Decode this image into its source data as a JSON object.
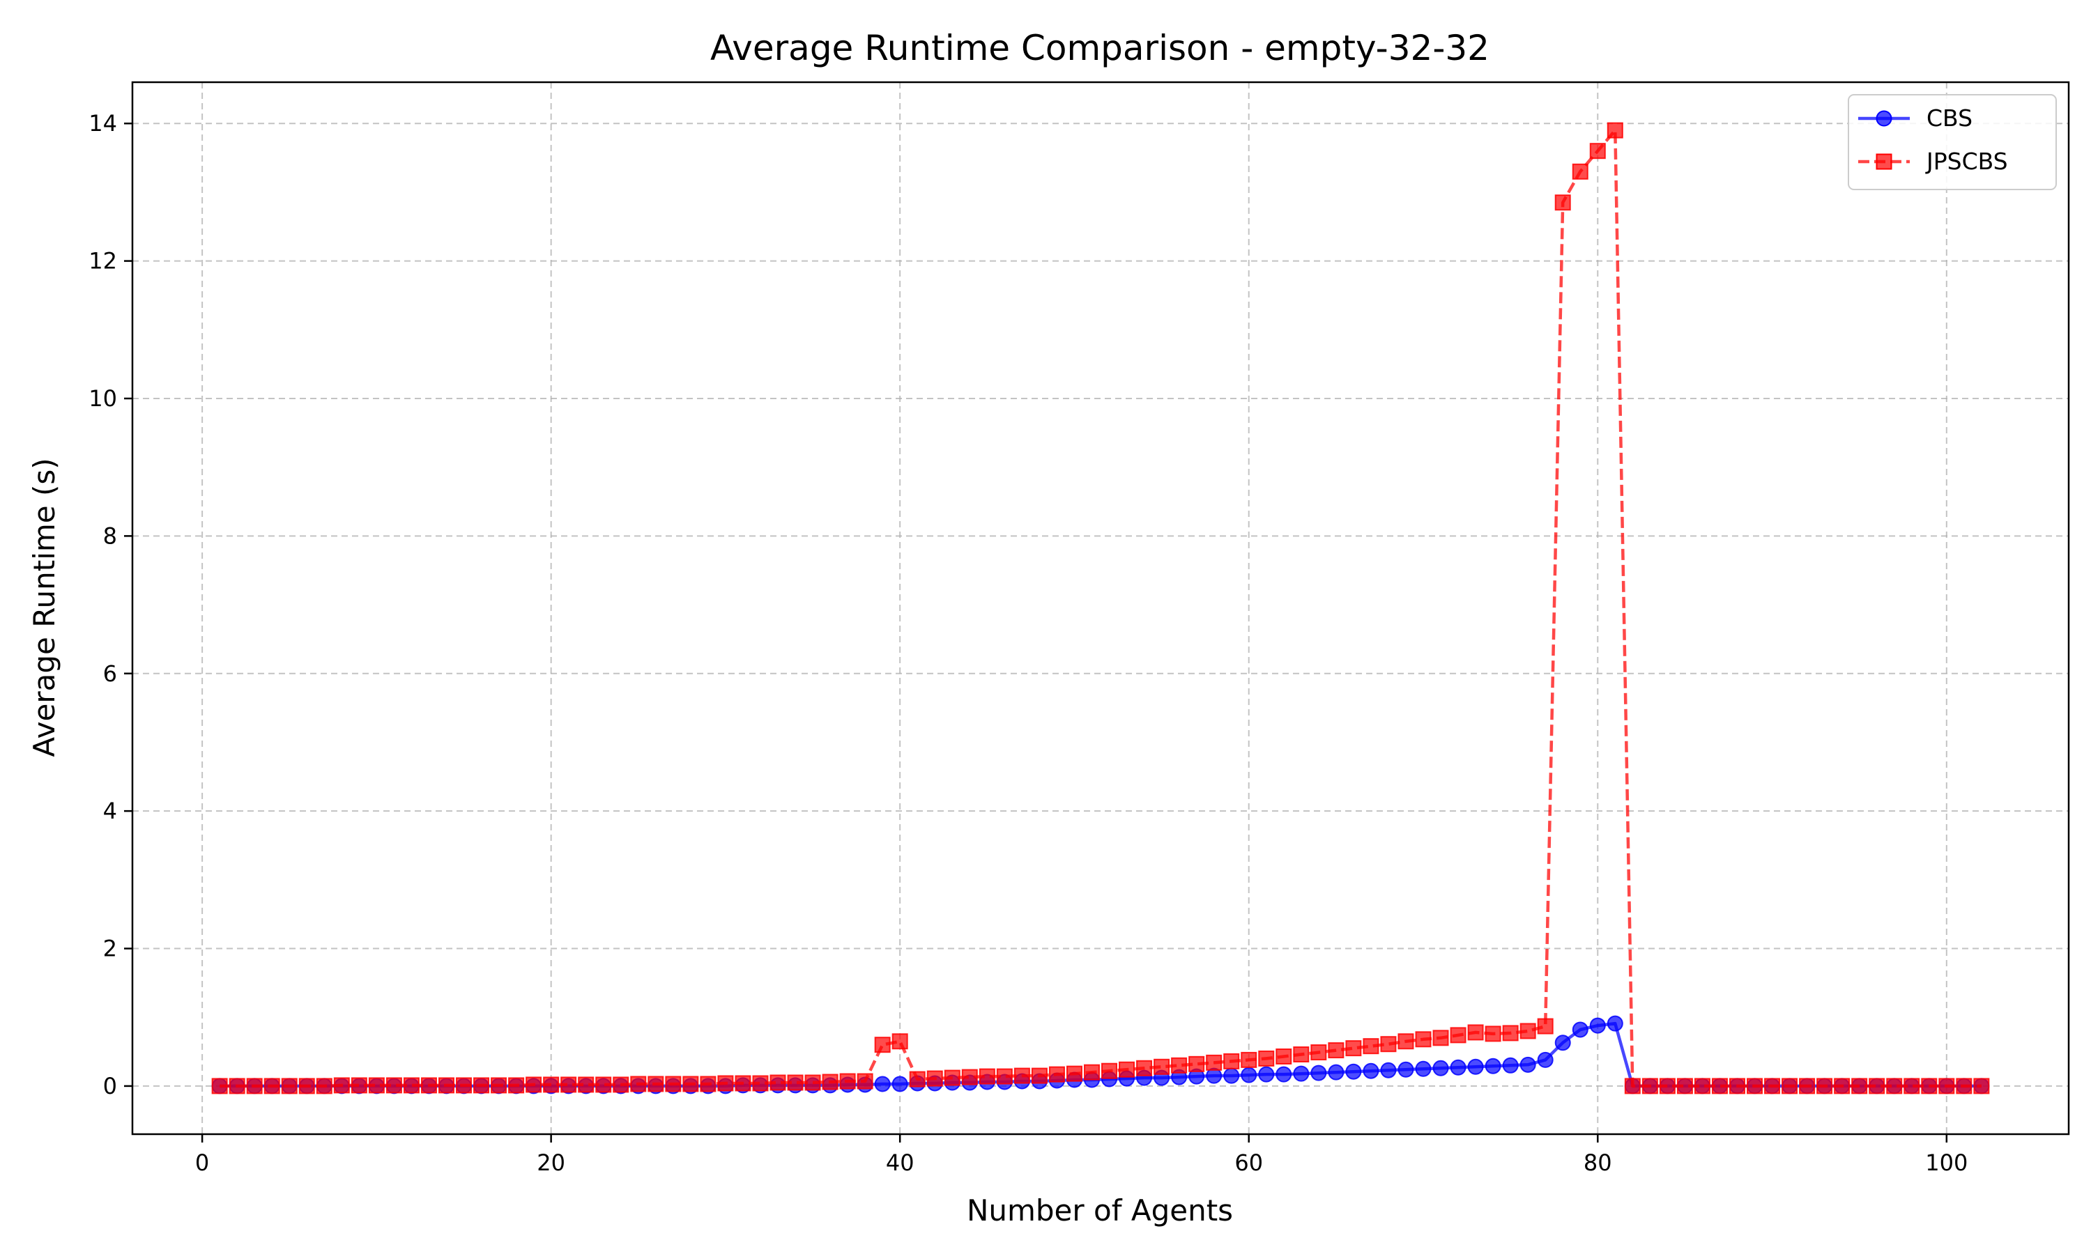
{
  "chart_data": {
    "type": "line",
    "title": "Average Runtime Comparison - empty-32-32",
    "xlabel": "Number of Agents",
    "ylabel": "Average Runtime (s)",
    "xlim": [
      -4,
      107
    ],
    "ylim": [
      -0.7,
      14.6
    ],
    "xticks": [
      0,
      20,
      40,
      60,
      80,
      100
    ],
    "yticks": [
      0,
      2,
      4,
      6,
      8,
      10,
      12,
      14
    ],
    "grid": true,
    "legend_position": "top-right",
    "x": [
      1,
      2,
      3,
      4,
      5,
      6,
      7,
      8,
      9,
      10,
      11,
      12,
      13,
      14,
      15,
      16,
      17,
      18,
      19,
      20,
      21,
      22,
      23,
      24,
      25,
      26,
      27,
      28,
      29,
      30,
      31,
      32,
      33,
      34,
      35,
      36,
      37,
      38,
      39,
      40,
      41,
      42,
      43,
      44,
      45,
      46,
      47,
      48,
      49,
      50,
      51,
      52,
      53,
      54,
      55,
      56,
      57,
      58,
      59,
      60,
      61,
      62,
      63,
      64,
      65,
      66,
      67,
      68,
      69,
      70,
      71,
      72,
      73,
      74,
      75,
      76,
      77,
      78,
      79,
      80,
      81,
      82,
      83,
      84,
      85,
      86,
      87,
      88,
      89,
      90,
      91,
      92,
      93,
      94,
      95,
      96,
      97,
      98,
      99,
      100,
      101,
      102
    ],
    "series": [
      {
        "name": "CBS",
        "color": "#0000ff",
        "line_style": "solid",
        "marker": "circle",
        "values": [
          0.0,
          0.0,
          0.0,
          0.0,
          0.0,
          0.0,
          0.0,
          0.0,
          0.0,
          0.0,
          0.0,
          0.0,
          0.0,
          0.0,
          0.0,
          0.0,
          0.0,
          0.0,
          0.0,
          0.0,
          0.0,
          0.0,
          0.0,
          0.0,
          0.0,
          0.0,
          0.0,
          0.0,
          0.0,
          0.0,
          0.01,
          0.01,
          0.01,
          0.01,
          0.01,
          0.01,
          0.02,
          0.02,
          0.03,
          0.03,
          0.04,
          0.04,
          0.05,
          0.05,
          0.06,
          0.06,
          0.07,
          0.07,
          0.08,
          0.09,
          0.09,
          0.1,
          0.11,
          0.12,
          0.12,
          0.13,
          0.14,
          0.15,
          0.15,
          0.16,
          0.17,
          0.17,
          0.18,
          0.19,
          0.2,
          0.21,
          0.22,
          0.23,
          0.24,
          0.25,
          0.26,
          0.27,
          0.28,
          0.29,
          0.3,
          0.31,
          0.38,
          0.63,
          0.82,
          0.88,
          0.91,
          0.0,
          0.0,
          0.0,
          0.0,
          0.0,
          0.0,
          0.0,
          0.0,
          0.0,
          0.0,
          0.0,
          0.0,
          0.0,
          0.0,
          0.0,
          0.0,
          0.0,
          0.0,
          0.0,
          0.0,
          0.0
        ]
      },
      {
        "name": "JPSCBS",
        "color": "#ff0000",
        "line_style": "dashed",
        "marker": "square",
        "values": [
          0.0,
          0.0,
          0.0,
          0.0,
          0.0,
          0.0,
          0.0,
          0.01,
          0.01,
          0.01,
          0.01,
          0.01,
          0.01,
          0.01,
          0.01,
          0.01,
          0.01,
          0.01,
          0.02,
          0.02,
          0.02,
          0.02,
          0.02,
          0.02,
          0.03,
          0.03,
          0.03,
          0.03,
          0.03,
          0.04,
          0.04,
          0.04,
          0.05,
          0.05,
          0.05,
          0.06,
          0.07,
          0.07,
          0.6,
          0.65,
          0.1,
          0.11,
          0.12,
          0.13,
          0.14,
          0.14,
          0.15,
          0.15,
          0.17,
          0.18,
          0.2,
          0.22,
          0.24,
          0.26,
          0.28,
          0.3,
          0.32,
          0.34,
          0.36,
          0.38,
          0.4,
          0.43,
          0.46,
          0.49,
          0.52,
          0.55,
          0.58,
          0.61,
          0.65,
          0.68,
          0.7,
          0.74,
          0.78,
          0.76,
          0.77,
          0.8,
          0.87,
          12.85,
          13.3,
          13.6,
          13.9,
          0.0,
          0.0,
          0.0,
          0.0,
          0.0,
          0.0,
          0.0,
          0.0,
          0.0,
          0.0,
          0.0,
          0.0,
          0.0,
          0.0,
          0.0,
          0.0,
          0.0,
          0.0,
          0.0,
          0.0,
          0.0
        ]
      }
    ]
  }
}
